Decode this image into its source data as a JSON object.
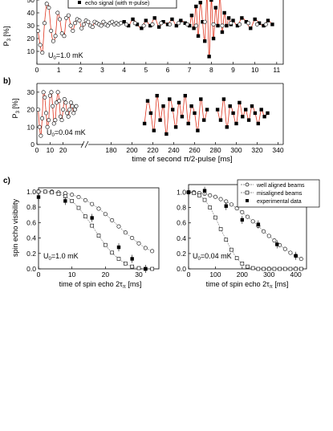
{
  "figure": {
    "panel_labels": [
      "b)",
      "c)"
    ],
    "legend_a": [
      "echo signal (with π-pulse)"
    ],
    "legend_c": [
      "well aligned beams",
      "misaligned beams",
      "experimental data"
    ]
  },
  "chart_data": [
    {
      "panel": "a",
      "type": "scatter",
      "xlabel": "",
      "ylabel": "P3 [%]",
      "xlim": [
        0,
        11.3
      ],
      "ylim": [
        0,
        55
      ],
      "xticks": [
        0,
        1,
        2,
        3,
        4,
        5,
        6,
        7,
        8,
        9,
        10,
        11
      ],
      "yticks": [
        10,
        20,
        30,
        40,
        50
      ],
      "annotation": "U0=1.0 mK",
      "series": [
        {
          "name": "",
          "marker": "open-circle",
          "x": [
            0.05,
            0.15,
            0.25,
            0.35,
            0.45,
            0.55,
            0.65,
            0.75,
            0.85,
            0.95,
            1.05,
            1.15,
            1.25,
            1.35,
            1.45,
            1.55,
            1.65,
            1.75,
            1.85,
            1.95,
            2.05,
            2.15,
            2.25,
            2.35,
            2.45,
            2.55,
            2.65,
            2.75,
            2.85,
            2.95,
            3.05,
            3.15,
            3.25,
            3.35,
            3.45,
            3.55,
            3.65,
            3.75,
            3.85
          ],
          "y": [
            26,
            15,
            9,
            32,
            47,
            44,
            26,
            18,
            22,
            40,
            35,
            24,
            22,
            36,
            38,
            30,
            26,
            32,
            35,
            34,
            28,
            31,
            34,
            33,
            30,
            29,
            33,
            32,
            31,
            30,
            33,
            31,
            30,
            32,
            33,
            31,
            32,
            31,
            32
          ]
        },
        {
          "name": "echo signal (with π-pulse)",
          "marker": "filled-square",
          "x": [
            4.0,
            4.2,
            4.4,
            4.6,
            4.8,
            5.0,
            5.2,
            5.4,
            5.6,
            5.8,
            6.0,
            6.2,
            6.4,
            6.6,
            6.8,
            7.0,
            7.1,
            7.2,
            7.3,
            7.4,
            7.5,
            7.6,
            7.7,
            7.8,
            7.9,
            8.0,
            8.1,
            8.2,
            8.3,
            8.4,
            8.5,
            8.6,
            8.7,
            8.8,
            8.9,
            9.0,
            9.2,
            9.4,
            9.6,
            9.8,
            10.0,
            10.2,
            10.4,
            10.6,
            10.8
          ],
          "y": [
            33,
            30,
            35,
            31,
            28,
            34,
            30,
            36,
            29,
            33,
            31,
            35,
            30,
            34,
            32,
            30,
            38,
            28,
            45,
            22,
            48,
            33,
            18,
            52,
            6,
            50,
            20,
            44,
            30,
            52,
            25,
            40,
            30,
            36,
            31,
            34,
            30,
            36,
            33,
            28,
            35,
            32,
            30,
            34,
            31
          ]
        },
        {
          "name": "",
          "marker": "open-circle",
          "x": [
            4.1,
            4.5,
            4.9,
            5.3,
            5.7,
            6.1,
            6.5,
            6.9,
            7.3,
            7.7,
            8.1,
            8.5,
            8.9,
            9.3,
            9.7,
            10.1,
            10.5
          ],
          "y": [
            31,
            32,
            30,
            31,
            32,
            31,
            32,
            31,
            30,
            33,
            31,
            30,
            32,
            31,
            32,
            31,
            31
          ]
        }
      ]
    },
    {
      "panel": "b",
      "type": "scatter",
      "xlabel": "time of second π/2-pulse [ms]",
      "ylabel": "P3 [%]",
      "ylim": [
        0,
        35
      ],
      "xticks_left": [
        0,
        10,
        20
      ],
      "xticks_right": [
        180,
        200,
        220,
        240,
        260,
        280,
        300,
        320,
        340
      ],
      "yticks": [
        0,
        10,
        20,
        30
      ],
      "annotation": "U0=0.04 mK",
      "series": [
        {
          "name": "",
          "marker": "open-circle",
          "x": [
            1,
            2,
            3,
            4,
            5,
            6,
            7,
            8,
            9,
            10,
            11,
            12,
            13,
            14,
            15,
            16,
            17,
            18,
            19,
            20,
            21,
            22,
            23,
            24,
            25,
            26,
            27,
            28,
            29,
            30
          ],
          "y": [
            20,
            10,
            5,
            15,
            30,
            27,
            18,
            10,
            14,
            28,
            30,
            22,
            12,
            14,
            24,
            30,
            25,
            16,
            14,
            20,
            26,
            24,
            18,
            16,
            20,
            24,
            22,
            18,
            20,
            22
          ]
        },
        {
          "name": "",
          "marker": "filled-square",
          "x": [
            212,
            215,
            218,
            221,
            224,
            227,
            230,
            233,
            236,
            239,
            242,
            245,
            248,
            251,
            254,
            257,
            260,
            263,
            266,
            269,
            272
          ],
          "y": [
            12,
            25,
            18,
            8,
            28,
            14,
            22,
            6,
            26,
            20,
            10,
            24,
            16,
            28,
            12,
            22,
            18,
            8,
            26,
            14,
            20
          ]
        },
        {
          "name": "",
          "marker": "filled-square",
          "x": [
            282,
            285,
            288,
            291,
            294,
            297,
            300,
            303,
            306,
            309,
            312,
            315,
            318,
            321,
            324,
            327,
            330
          ],
          "y": [
            20,
            14,
            26,
            10,
            22,
            18,
            12,
            24,
            16,
            20,
            14,
            22,
            18,
            12,
            20,
            16,
            18
          ]
        }
      ]
    },
    {
      "panel": "c-left",
      "type": "line",
      "xlabel": "time of spin echo 2τπ [ms]",
      "ylabel": "spin echo visibility",
      "xlim": [
        0,
        36
      ],
      "ylim": [
        0,
        1.05
      ],
      "xticks": [
        0,
        10,
        20,
        30
      ],
      "yticks": [
        0.0,
        0.2,
        0.4,
        0.6,
        0.8,
        1.0
      ],
      "annotation": "U0=1.0 mK",
      "series": [
        {
          "name": "well aligned beams",
          "marker": "open-circle",
          "x": [
            0,
            2,
            4,
            6,
            8,
            10,
            12,
            14,
            16,
            18,
            20,
            22,
            24,
            26,
            28,
            30,
            32,
            34
          ],
          "y": [
            1.0,
            1.0,
            1.0,
            0.99,
            0.98,
            0.96,
            0.93,
            0.89,
            0.84,
            0.78,
            0.71,
            0.63,
            0.55,
            0.47,
            0.4,
            0.33,
            0.27,
            0.23
          ]
        },
        {
          "name": "misaligned beams",
          "marker": "open-square",
          "x": [
            0,
            2,
            4,
            6,
            8,
            10,
            12,
            14,
            16,
            18,
            20,
            22,
            24,
            26,
            28,
            30,
            32,
            34
          ],
          "y": [
            1.0,
            1.0,
            0.99,
            0.97,
            0.94,
            0.88,
            0.79,
            0.68,
            0.56,
            0.43,
            0.31,
            0.21,
            0.13,
            0.07,
            0.03,
            0.01,
            0.0,
            0.0
          ]
        },
        {
          "name": "experimental data",
          "marker": "filled-square",
          "x": [
            0,
            8,
            16,
            24,
            28,
            32
          ],
          "y": [
            0.93,
            0.88,
            0.66,
            0.28,
            0.13,
            0.0
          ]
        }
      ]
    },
    {
      "panel": "c-right",
      "type": "line",
      "xlabel": "time of spin echo 2τπ [ms]",
      "ylabel": "",
      "xlim": [
        0,
        440
      ],
      "ylim": [
        0,
        1.1
      ],
      "xticks": [
        0,
        100,
        200,
        300,
        400
      ],
      "yticks": [
        0.0,
        0.2,
        0.4,
        0.6,
        0.8,
        1.0
      ],
      "annotation": "U0=0.04 mK",
      "series": [
        {
          "name": "well aligned beams",
          "marker": "open-circle",
          "x": [
            0,
            20,
            40,
            60,
            80,
            100,
            120,
            140,
            160,
            180,
            200,
            220,
            240,
            260,
            280,
            300,
            320,
            340,
            360,
            380,
            400,
            420
          ],
          "y": [
            1.0,
            1.0,
            0.99,
            0.98,
            0.96,
            0.94,
            0.91,
            0.88,
            0.84,
            0.79,
            0.74,
            0.68,
            0.62,
            0.56,
            0.49,
            0.43,
            0.37,
            0.31,
            0.26,
            0.21,
            0.17,
            0.13
          ]
        },
        {
          "name": "misaligned beams",
          "marker": "open-square",
          "x": [
            0,
            20,
            40,
            60,
            80,
            100,
            120,
            140,
            160,
            180,
            200,
            220,
            240,
            260,
            280,
            300,
            320,
            340,
            360,
            380,
            400,
            420
          ],
          "y": [
            1.0,
            0.99,
            0.96,
            0.9,
            0.8,
            0.67,
            0.52,
            0.38,
            0.25,
            0.14,
            0.07,
            0.03,
            0.01,
            0.0,
            0.0,
            0.0,
            0.0,
            0.0,
            0.0,
            0.0,
            0.0,
            0.0
          ]
        },
        {
          "name": "experimental data",
          "marker": "filled-square",
          "x": [
            0,
            60,
            140,
            200,
            260,
            330,
            400
          ],
          "y": [
            1.0,
            1.02,
            0.82,
            0.64,
            0.58,
            0.32,
            0.17
          ]
        }
      ]
    }
  ]
}
